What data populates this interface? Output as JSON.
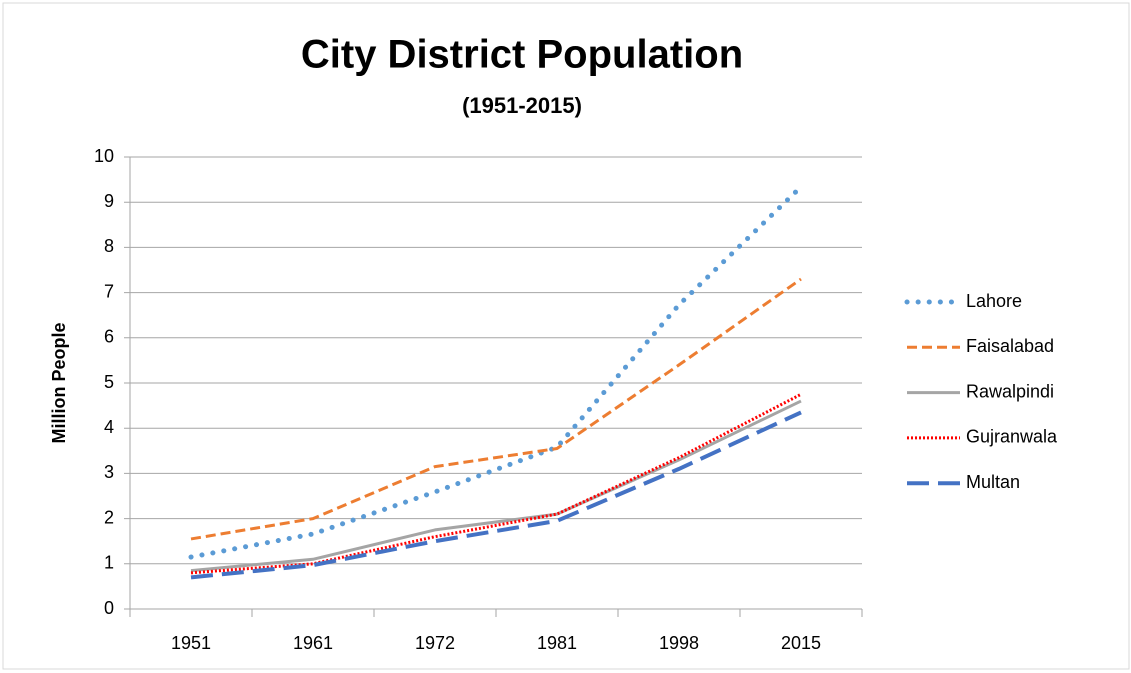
{
  "chart_data": {
    "type": "line",
    "title": "City District Population",
    "subtitle": "(1951-2015)",
    "y_label": "Million People",
    "categories": [
      "1951",
      "1961",
      "1972",
      "1981",
      "1998",
      "2015"
    ],
    "series": [
      {
        "name": "Lahore",
        "color": "#5b9bd5",
        "values": [
          1.15,
          1.66,
          2.59,
          3.58,
          6.73,
          9.34
        ]
      },
      {
        "name": "Faisalabad",
        "color": "#ed7d31",
        "values": [
          1.55,
          2.0,
          3.15,
          3.55,
          5.4,
          7.3
        ]
      },
      {
        "name": "Rawalpindi",
        "color": "#a5a5a5",
        "values": [
          0.85,
          1.1,
          1.75,
          2.1,
          3.3,
          4.6
        ]
      },
      {
        "name": "Gujranwala",
        "color": "#ff0000",
        "values": [
          0.8,
          1.0,
          1.6,
          2.1,
          3.35,
          4.75
        ]
      },
      {
        "name": "Multan",
        "color": "#4472c4",
        "values": [
          0.7,
          0.97,
          1.5,
          1.95,
          3.1,
          4.35
        ]
      }
    ],
    "ylim": [
      0,
      10
    ],
    "yticks": [
      0,
      1,
      2,
      3,
      4,
      5,
      6,
      7,
      8,
      9,
      10
    ],
    "grid": true,
    "legend": "right"
  }
}
